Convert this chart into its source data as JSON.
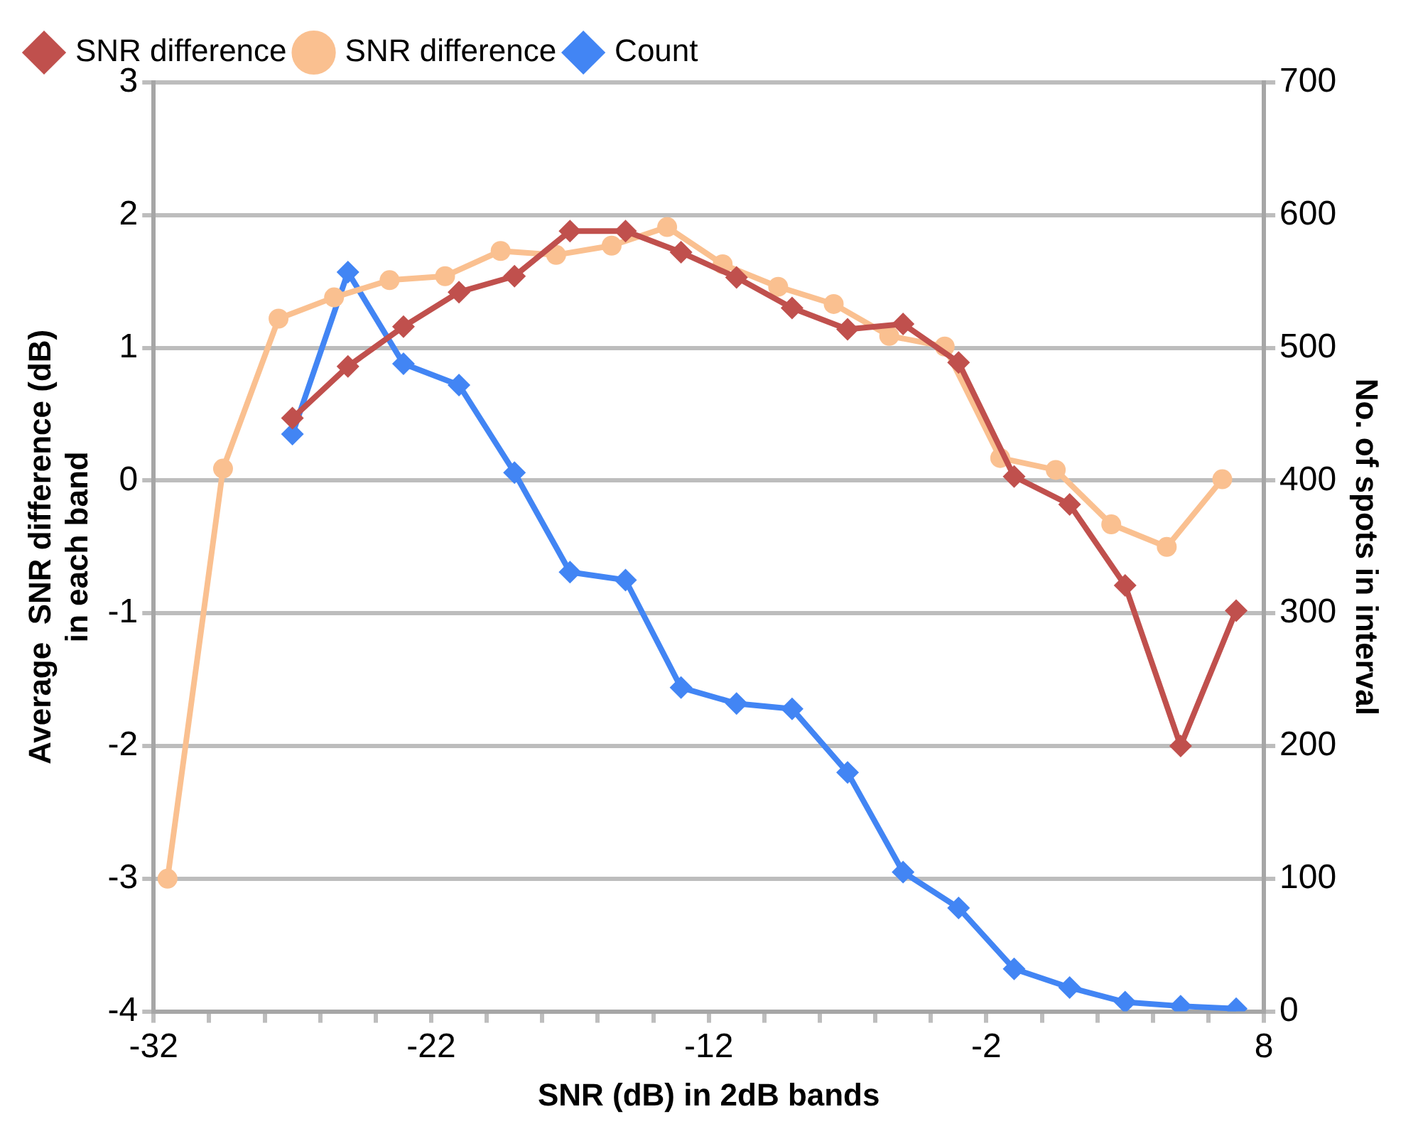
{
  "chart_data": {
    "type": "line",
    "xlabel": "SNR (dB) in 2dB bands",
    "ylabel": "Average  SNR difference (dB) in each band",
    "y2label": "No. of spots in interval",
    "series": [
      {
        "name": "SNR difference",
        "color": "#c0504d",
        "marker": "diamond",
        "x": [
          -27,
          -25,
          -23,
          -21,
          -19,
          -17,
          -15,
          -13,
          -11,
          -9,
          -7,
          -5,
          -3,
          -1,
          1,
          3,
          5,
          7
        ],
        "values": [
          0.47,
          0.86,
          1.16,
          1.42,
          1.54,
          1.88,
          1.88,
          1.72,
          1.53,
          1.3,
          1.14,
          1.18,
          0.89,
          0.03,
          -0.18,
          -0.79,
          -2.0,
          -0.98
        ]
      },
      {
        "name": "SNR difference",
        "color": "#fac090",
        "marker": "circle",
        "x": [
          -31.5,
          -29.5,
          -27.5,
          -25.5,
          -23.5,
          -21.5,
          -19.5,
          -17.5,
          -15.5,
          -13.5,
          -11.5,
          -9.5,
          -7.5,
          -5.5,
          -3.5,
          -1.5,
          0.5,
          2.5,
          4.5,
          6.5
        ],
        "values": [
          -3.0,
          0.09,
          1.22,
          1.38,
          1.51,
          1.54,
          1.73,
          1.7,
          1.77,
          1.91,
          1.63,
          1.46,
          1.33,
          1.09,
          1.01,
          0.17,
          0.08,
          -0.33,
          -0.5,
          0.01
        ]
      },
      {
        "name": "Count",
        "color": "#4285f4",
        "marker": "diamond",
        "axis": "y2",
        "x": [
          -27,
          -25,
          -23,
          -21,
          -19,
          -17,
          -15,
          -13,
          -11,
          -9,
          -7,
          -5,
          -3,
          -1,
          1,
          3,
          5,
          7
        ],
        "values": [
          435,
          557,
          488,
          472,
          406,
          331,
          325,
          244,
          232,
          228,
          180,
          105,
          78,
          32,
          18,
          7,
          4,
          2
        ]
      }
    ],
    "xlim": [
      -32,
      8
    ],
    "xticks": [
      -32,
      {
        "value": -30,
        "label": null
      },
      {
        "value": -28,
        "label": null
      },
      {
        "value": -26,
        "label": null
      },
      {
        "value": -24,
        "label": null
      },
      -22,
      {
        "value": -20,
        "label": null
      },
      {
        "value": -18,
        "label": null
      },
      {
        "value": -16,
        "label": null
      },
      {
        "value": -14,
        "label": null
      },
      -12,
      {
        "value": -10,
        "label": null
      },
      {
        "value": -8,
        "label": null
      },
      {
        "value": -6,
        "label": null
      },
      {
        "value": -4,
        "label": null
      },
      -2,
      {
        "value": 0,
        "label": null
      },
      {
        "value": 2,
        "label": null
      },
      {
        "value": 4,
        "label": null
      },
      {
        "value": 6,
        "label": null
      },
      8
    ],
    "ylim": [
      -4,
      3
    ],
    "yticks": [
      -4,
      -3,
      -2,
      -1,
      0,
      1,
      2,
      3
    ],
    "y2lim": [
      0,
      700
    ],
    "y2ticks": [
      0,
      100,
      200,
      300,
      400,
      500,
      600,
      700
    ],
    "grid": "y",
    "legend": "top left",
    "line_style": "solid"
  }
}
